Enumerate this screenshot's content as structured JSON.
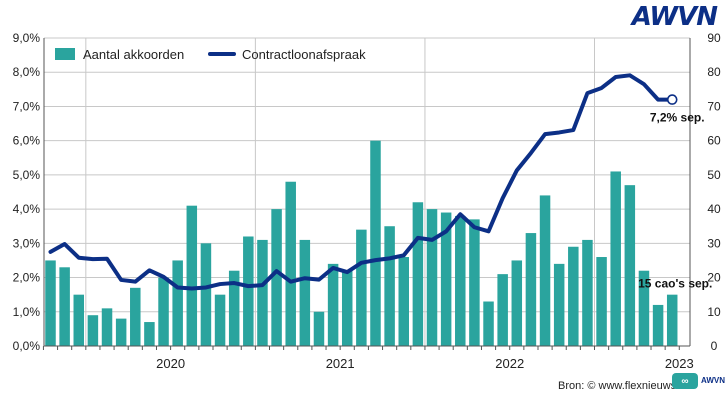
{
  "brand": "AWVN",
  "source": "Bron: © www.flexnieuws.nl",
  "source_logo": "AWVN",
  "colors": {
    "bar": "#2aa49e",
    "line": "#0c2f86",
    "grid": "#c8c8c8",
    "axis_text": "#222222"
  },
  "chart_data": {
    "type": "bar+line",
    "legend": [
      "Aantal akkoorden",
      "Contractloonafspraak"
    ],
    "left_axis": {
      "ylim": [
        0,
        9
      ],
      "ticks": [
        "0,0%",
        "1,0%",
        "2,0%",
        "3,0%",
        "4,0%",
        "5,0%",
        "6,0%",
        "7,0%",
        "8,0%",
        "9,0%"
      ]
    },
    "right_axis": {
      "ylim": [
        0,
        90
      ],
      "ticks": [
        "0",
        "10",
        "20",
        "30",
        "40",
        "50",
        "60",
        "70",
        "80",
        "90"
      ]
    },
    "year_labels": [
      "2020",
      "2021",
      "2022",
      "2023"
    ],
    "year_start_index": [
      3,
      15,
      27,
      39
    ],
    "series": [
      {
        "name": "Aantal akkoorden",
        "axis": "right",
        "values": [
          25,
          23,
          15,
          9,
          11,
          8,
          17,
          7,
          20,
          25,
          41,
          30,
          15,
          22,
          32,
          31,
          40,
          48,
          31,
          10,
          24,
          22,
          34,
          60,
          35,
          26,
          42,
          40,
          39,
          38,
          37,
          13,
          21,
          25,
          33,
          44,
          24,
          29,
          31,
          26,
          51,
          47,
          22,
          12,
          15
        ]
      },
      {
        "name": "Contractloonafspraak",
        "axis": "left",
        "values": [
          2.75,
          2.98,
          2.58,
          2.54,
          2.55,
          1.93,
          1.88,
          2.21,
          2.02,
          1.71,
          1.68,
          1.71,
          1.81,
          1.84,
          1.75,
          1.78,
          2.19,
          1.88,
          1.98,
          1.94,
          2.28,
          2.16,
          2.43,
          2.51,
          2.56,
          2.65,
          3.16,
          3.1,
          3.35,
          3.85,
          3.47,
          3.35,
          4.32,
          5.13,
          5.64,
          6.19,
          6.24,
          6.31,
          7.39,
          7.54,
          7.86,
          7.91,
          7.65,
          7.2,
          7.2
        ]
      }
    ],
    "annotations": [
      {
        "text": "7,2% sep.",
        "series": 1,
        "index": 44
      },
      {
        "text": "15 cao's sep.",
        "series": 0,
        "index": 44
      }
    ]
  }
}
